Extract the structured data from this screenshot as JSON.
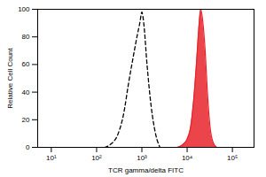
{
  "chart_data": {
    "type": "histogram_overlay",
    "x_label": "TCR gamma/delta FITC",
    "y_label": "Relative Cell Count",
    "log": "x",
    "xlim": [
      5,
      300000
    ],
    "xticks": [
      {
        "value": 10,
        "label": "10¹"
      },
      {
        "value": 100,
        "label": "10²"
      },
      {
        "value": 1000,
        "label": "10³"
      },
      {
        "value": 10000,
        "label": "10⁴"
      },
      {
        "value": 100000,
        "label": "10⁵"
      }
    ],
    "ylim": [
      0,
      100
    ],
    "yticks": [
      0,
      20,
      40,
      60,
      80,
      100
    ],
    "series": [
      {
        "type": "line",
        "color": "#000000",
        "line_style": "dashed",
        "x": [
          150,
          200,
          300,
          400,
          500,
          600,
          700,
          800,
          900,
          1000,
          1100,
          1300,
          1600,
          2000,
          2500
        ],
        "values": [
          0,
          2,
          10,
          25,
          45,
          60,
          72,
          82,
          90,
          98,
          90,
          60,
          30,
          10,
          0
        ]
      },
      {
        "type": "area",
        "color": "#e8232a",
        "line_style": "solid",
        "x": [
          6000,
          8000,
          10000,
          12000,
          14000,
          16000,
          18000,
          20000,
          22000,
          25000,
          28000,
          32000,
          38000,
          45000
        ],
        "values": [
          0,
          2,
          6,
          15,
          35,
          60,
          85,
          100,
          92,
          70,
          40,
          15,
          3,
          0
        ]
      }
    ]
  }
}
